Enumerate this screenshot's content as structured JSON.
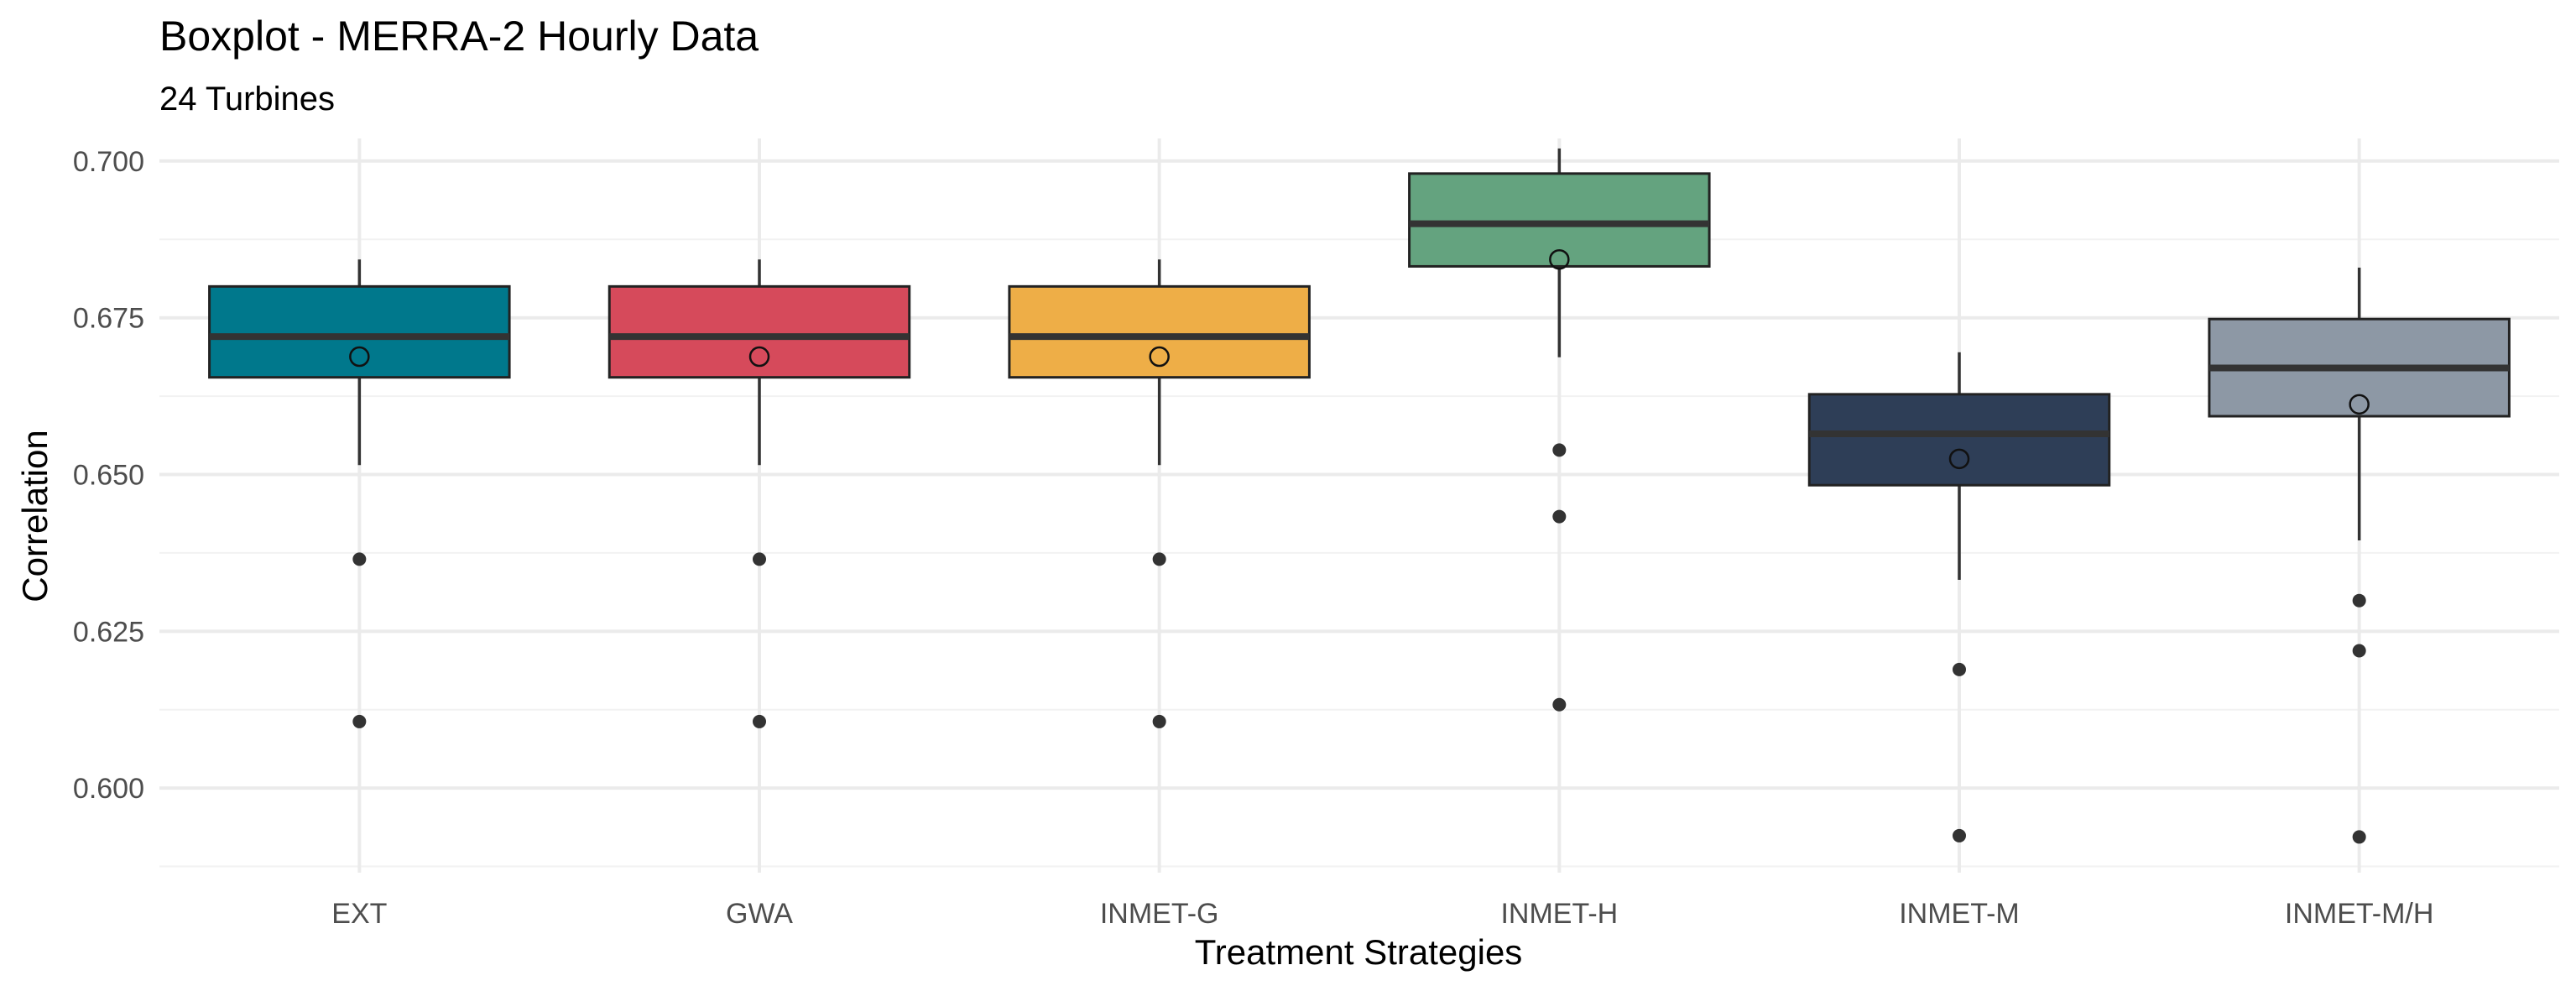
{
  "chart_data": {
    "type": "boxplot",
    "title": "Boxplot - MERRA-2 Hourly Data",
    "subtitle": "24 Turbines",
    "xlabel": "Treatment Strategies",
    "ylabel": "Correlation",
    "ylim": [
      0.5865,
      0.7036
    ],
    "yticks": [
      0.6,
      0.625,
      0.65,
      0.675,
      0.7
    ],
    "ytick_labels": [
      "0.600",
      "0.625",
      "0.650",
      "0.675",
      "0.700"
    ],
    "grid": true,
    "legend": "none",
    "categories": [
      "EXT",
      "GWA",
      "INMET-G",
      "INMET-H",
      "INMET-M",
      "INMET-M/H"
    ],
    "boxes": [
      {
        "category": "EXT",
        "whisker_low": 0.6515,
        "q1": 0.6655,
        "median": 0.672,
        "q3": 0.68,
        "whisker_high": 0.6843,
        "mean": 0.6688,
        "outliers": [
          0.6365,
          0.6106
        ],
        "color": "#00788C"
      },
      {
        "category": "GWA",
        "whisker_low": 0.6515,
        "q1": 0.6655,
        "median": 0.672,
        "q3": 0.68,
        "whisker_high": 0.6843,
        "mean": 0.6688,
        "outliers": [
          0.6365,
          0.6106
        ],
        "color": "#D64A5B"
      },
      {
        "category": "INMET-G",
        "whisker_low": 0.6515,
        "q1": 0.6655,
        "median": 0.672,
        "q3": 0.68,
        "whisker_high": 0.6843,
        "mean": 0.6688,
        "outliers": [
          0.6365,
          0.6106
        ],
        "color": "#EEAE47"
      },
      {
        "category": "INMET-H",
        "whisker_low": 0.6687,
        "q1": 0.6832,
        "median": 0.69,
        "q3": 0.698,
        "whisker_high": 0.702,
        "mean": 0.6843,
        "outliers": [
          0.6539,
          0.6433,
          0.6133
        ],
        "color": "#64A37F"
      },
      {
        "category": "INMET-M",
        "whisker_low": 0.6332,
        "q1": 0.6483,
        "median": 0.6565,
        "q3": 0.6628,
        "whisker_high": 0.6695,
        "mean": 0.6525,
        "outliers": [
          0.6189,
          0.5924
        ],
        "color": "#2E3E57"
      },
      {
        "category": "INMET-M/H",
        "whisker_low": 0.6395,
        "q1": 0.6593,
        "median": 0.667,
        "q3": 0.6748,
        "whisker_high": 0.683,
        "mean": 0.6612,
        "outliers": [
          0.6299,
          0.6219,
          0.5922
        ],
        "color": "#8D98A5"
      }
    ]
  }
}
